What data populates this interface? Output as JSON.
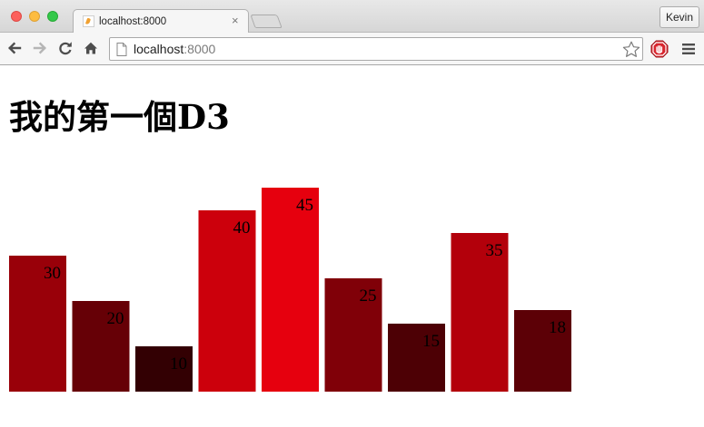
{
  "browser": {
    "tab_title": "localhost:8000",
    "tab_close": "×",
    "profile_name": "Kevin",
    "url_host": "localhost",
    "url_port": ":8000",
    "icons": {
      "back": "arrow-left-icon",
      "forward": "arrow-right-icon",
      "reload": "reload-icon",
      "home": "home-icon",
      "page": "document-icon",
      "bookmark": "star-icon",
      "extension": "stop-sign-icon",
      "menu": "hamburger-menu-icon"
    }
  },
  "page": {
    "heading": "我的第一個D3"
  },
  "chart_data": {
    "type": "bar",
    "values": [
      30,
      20,
      10,
      40,
      45,
      25,
      15,
      35,
      18
    ],
    "value_labels": [
      "30",
      "20",
      "10",
      "40",
      "45",
      "25",
      "15",
      "35",
      "18"
    ],
    "title": "",
    "xlabel": "",
    "ylabel": "",
    "color_scale": {
      "description": "red channel proportional to value",
      "max_value": 45,
      "example_colors": {
        "10": "#330000",
        "45": "#e6000e"
      }
    }
  }
}
